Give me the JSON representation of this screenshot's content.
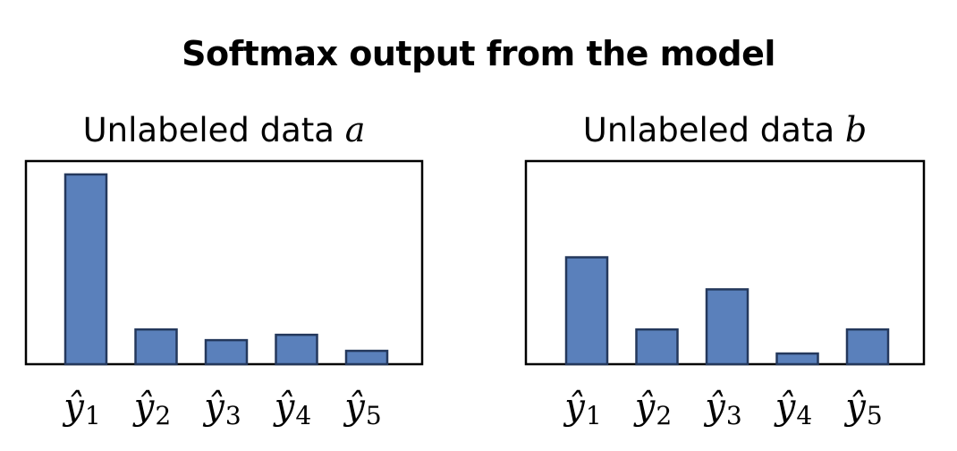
{
  "chart_data": {
    "title": "Softmax output from the model",
    "colors": {
      "bar_fill": "#5a80bb",
      "bar_stroke": "#24385c"
    },
    "panels": [
      {
        "type": "bar",
        "title": "Unlabeled data",
        "title_var": "a",
        "categories": [
          {
            "base": "ŷ",
            "sub": "1"
          },
          {
            "base": "ŷ",
            "sub": "2"
          },
          {
            "base": "ŷ",
            "sub": "3"
          },
          {
            "base": "ŷ",
            "sub": "4"
          },
          {
            "base": "ŷ",
            "sub": "5"
          }
        ],
        "values": [
          0.71,
          0.13,
          0.09,
          0.11,
          0.05
        ],
        "ylim": [
          0,
          0.76
        ],
        "xlabel": "",
        "ylabel": ""
      },
      {
        "type": "bar",
        "title": "Unlabeled data",
        "title_var": "b",
        "categories": [
          {
            "base": "ŷ",
            "sub": "1"
          },
          {
            "base": "ŷ",
            "sub": "2"
          },
          {
            "base": "ŷ",
            "sub": "3"
          },
          {
            "base": "ŷ",
            "sub": "4"
          },
          {
            "base": "ŷ",
            "sub": "5"
          }
        ],
        "values": [
          0.4,
          0.13,
          0.28,
          0.04,
          0.13
        ],
        "ylim": [
          0,
          0.76
        ],
        "xlabel": "",
        "ylabel": ""
      }
    ]
  }
}
